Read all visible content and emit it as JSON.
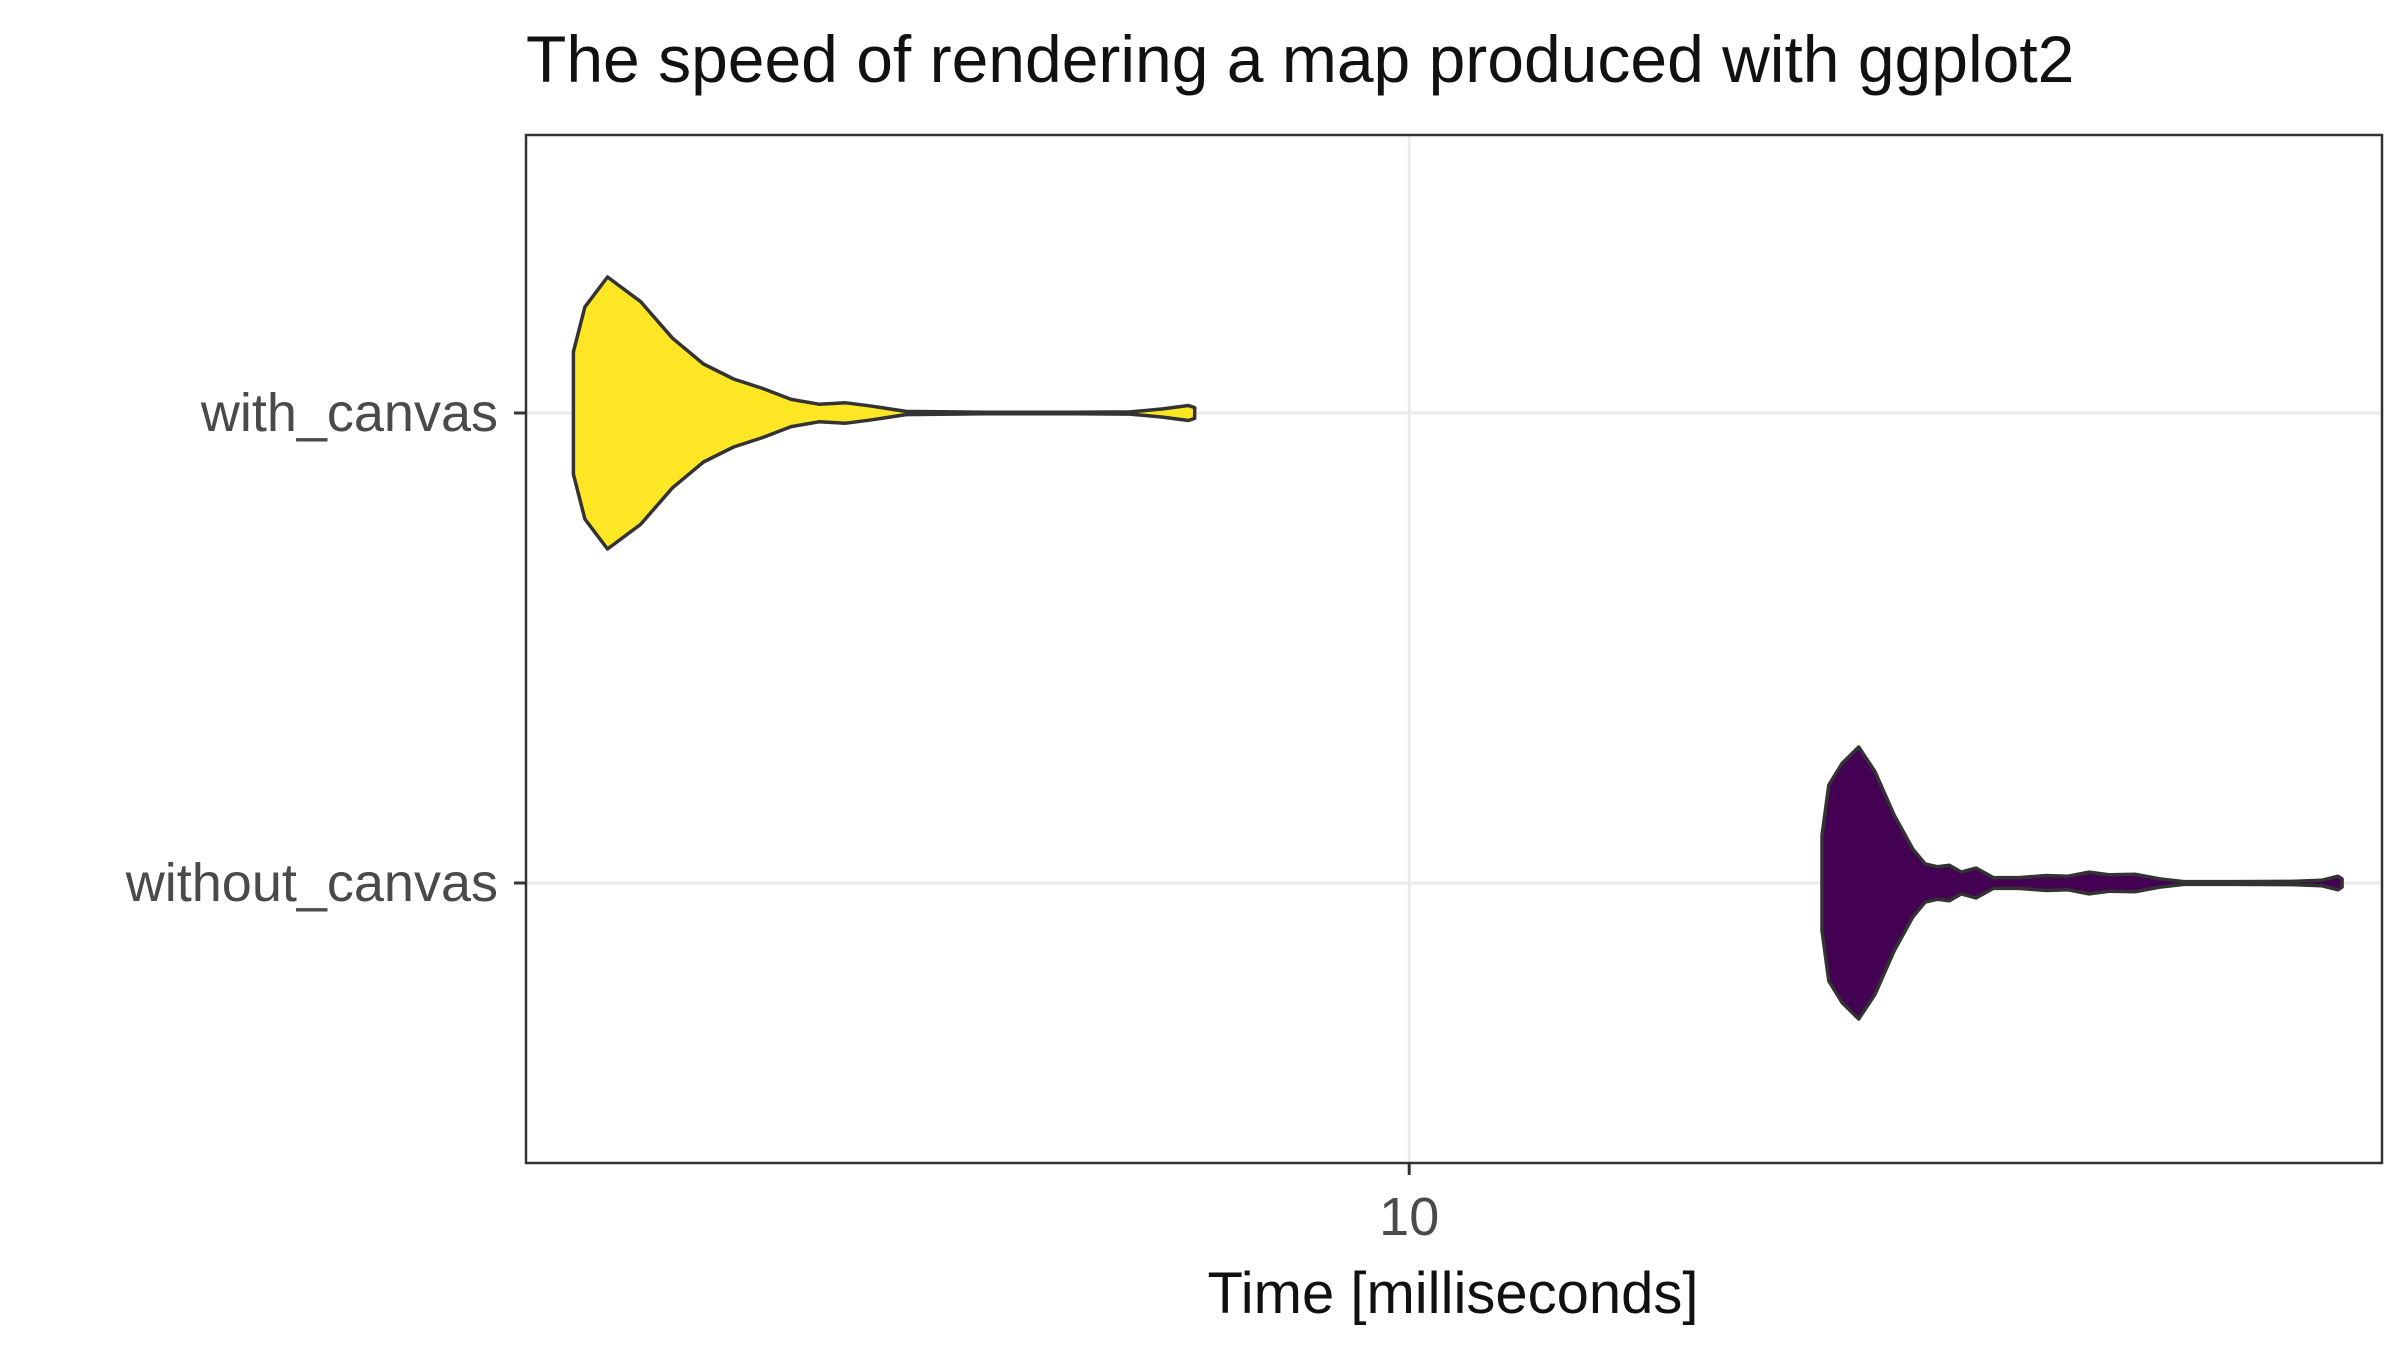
{
  "chart_data": {
    "type": "violin",
    "title": "The speed of rendering a map produced with ggplot2",
    "xlabel": "Time [milliseconds]",
    "ylabel": "",
    "x_scale": "log10",
    "xlim": [
      4.2,
      26
    ],
    "x_ticks": [
      10
    ],
    "x_tick_labels": [
      "10"
    ],
    "categories": [
      "with_canvas",
      "without_canvas"
    ],
    "grid": true,
    "legend": "none",
    "series": [
      {
        "category": "with_canvas",
        "fill": "#FDE725",
        "outline": "#333333",
        "range": [
          4.4,
          8.1
        ],
        "profile": [
          [
            4.4,
            0.45
          ],
          [
            4.45,
            0.78
          ],
          [
            4.55,
            1.0
          ],
          [
            4.7,
            0.82
          ],
          [
            4.85,
            0.55
          ],
          [
            5.0,
            0.36
          ],
          [
            5.15,
            0.25
          ],
          [
            5.3,
            0.18
          ],
          [
            5.45,
            0.1
          ],
          [
            5.6,
            0.065
          ],
          [
            5.75,
            0.075
          ],
          [
            5.9,
            0.05
          ],
          [
            6.1,
            0.012
          ],
          [
            6.6,
            0.006
          ],
          [
            7.2,
            0.006
          ],
          [
            7.6,
            0.008
          ],
          [
            7.85,
            0.03
          ],
          [
            8.05,
            0.055
          ],
          [
            8.1,
            0.04
          ]
        ]
      },
      {
        "category": "without_canvas",
        "fill": "#440154",
        "outline": "#333333",
        "range": [
          15.0,
          25.0
        ],
        "profile": [
          [
            15.0,
            0.35
          ],
          [
            15.1,
            0.72
          ],
          [
            15.3,
            0.88
          ],
          [
            15.55,
            1.0
          ],
          [
            15.8,
            0.82
          ],
          [
            16.1,
            0.5
          ],
          [
            16.4,
            0.25
          ],
          [
            16.6,
            0.14
          ],
          [
            16.8,
            0.12
          ],
          [
            17.0,
            0.13
          ],
          [
            17.2,
            0.08
          ],
          [
            17.45,
            0.11
          ],
          [
            17.75,
            0.04
          ],
          [
            18.2,
            0.04
          ],
          [
            18.7,
            0.055
          ],
          [
            19.1,
            0.05
          ],
          [
            19.5,
            0.08
          ],
          [
            19.9,
            0.06
          ],
          [
            20.4,
            0.065
          ],
          [
            20.9,
            0.03
          ],
          [
            21.4,
            0.01
          ],
          [
            22.5,
            0.01
          ],
          [
            23.8,
            0.012
          ],
          [
            24.5,
            0.02
          ],
          [
            24.9,
            0.05
          ],
          [
            25.0,
            0.03
          ]
        ]
      }
    ]
  },
  "colors": {
    "panel_border": "#333333",
    "grid": "#ebebeb",
    "violin_outline": "#333333"
  }
}
